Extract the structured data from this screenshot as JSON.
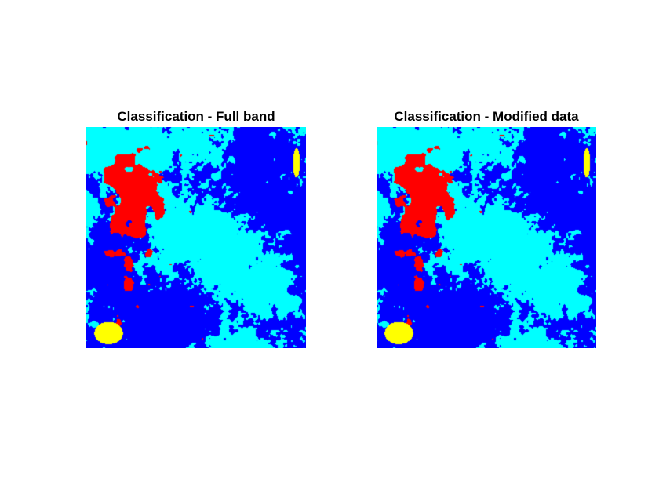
{
  "figure": {
    "panels": [
      {
        "title": "Classification - Full band",
        "seed": 11
      },
      {
        "title": "Classification - Modified data",
        "seed": 11
      }
    ]
  },
  "class_colors": {
    "class_1": "#0000ff",
    "class_2": "#00ffff",
    "class_3": "#ff0000",
    "class_4": "#ffff00"
  }
}
